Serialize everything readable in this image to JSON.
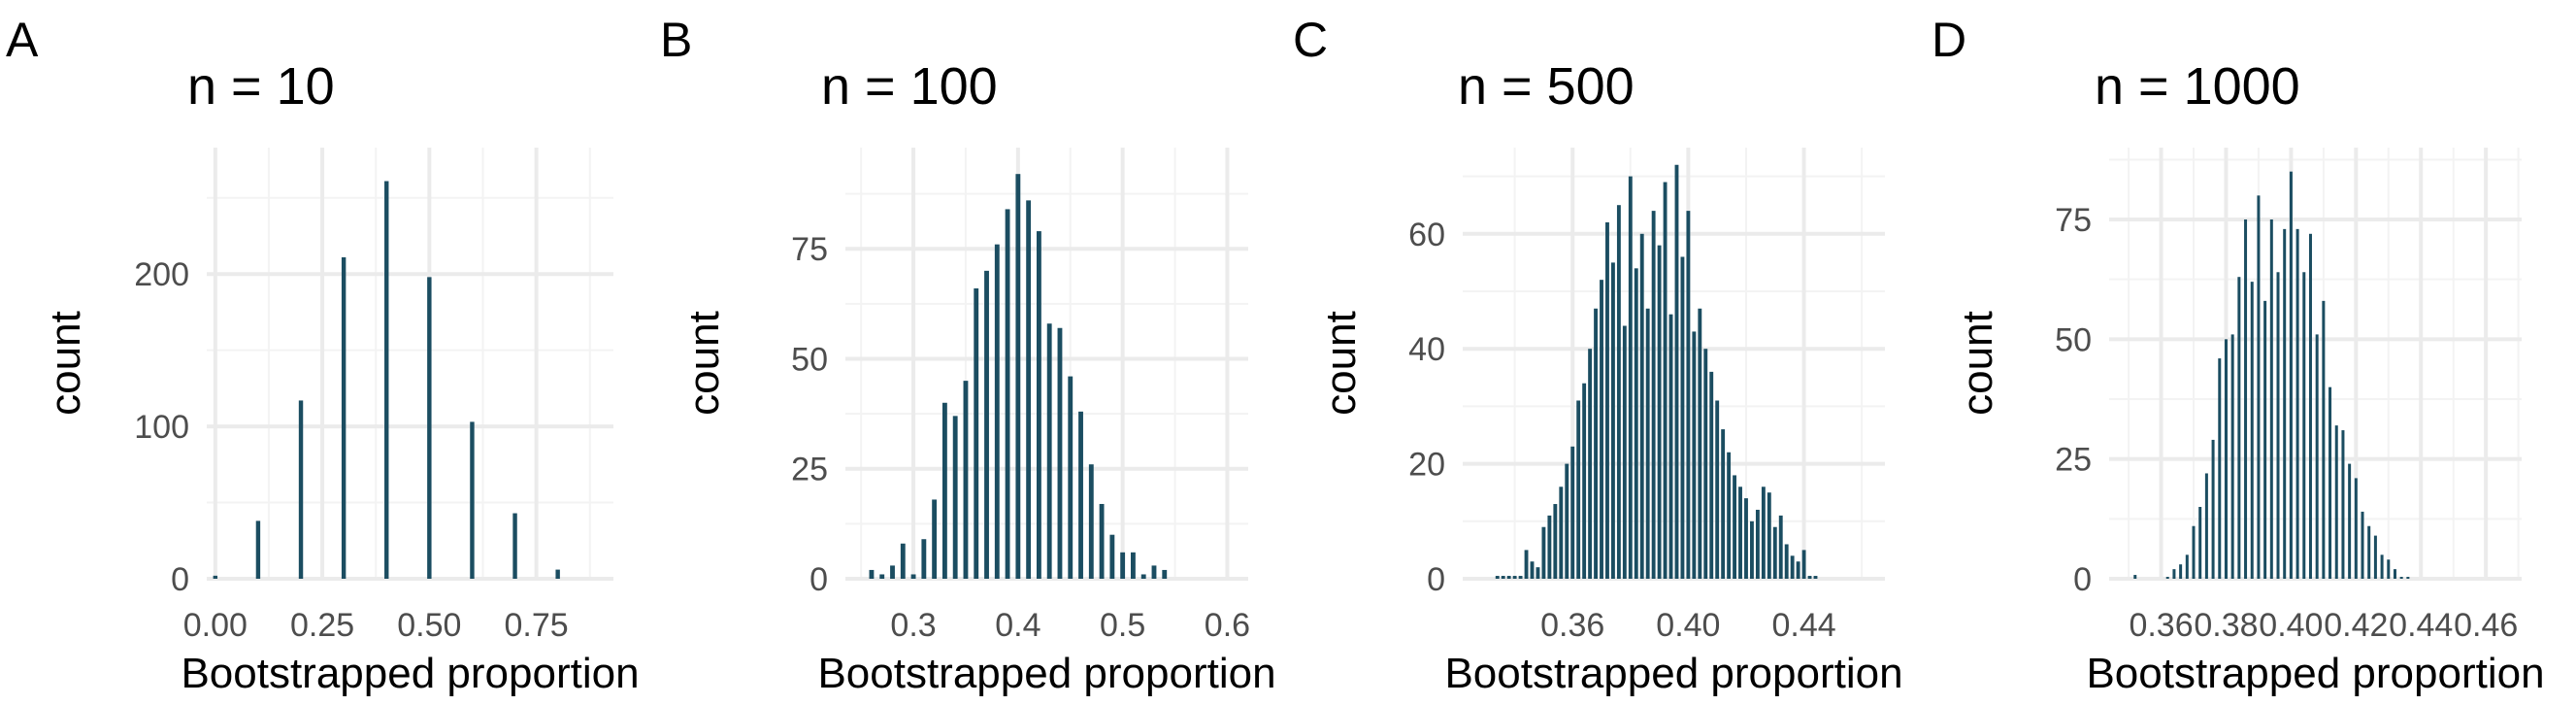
{
  "colors": {
    "bar": "#1b4d61",
    "grid": "#ebebeb",
    "background": "#ffffff"
  },
  "chart_data": [
    {
      "type": "bar",
      "panel": "A",
      "title": "n = 10",
      "xlabel": "Bootstrapped proportion",
      "ylabel": "count",
      "xlim": [
        -0.02,
        0.93
      ],
      "ylim": [
        0,
        283
      ],
      "xticks": [
        0,
        0.25,
        0.5,
        0.75
      ],
      "xtick_labels": [
        "0.00",
        "0.25",
        "0.50",
        "0.75"
      ],
      "yticks": [
        0,
        100,
        200
      ],
      "ytick_labels": [
        "0",
        "100",
        "200"
      ],
      "bar_width": 0.01,
      "x": [
        0.0,
        0.1,
        0.2,
        0.3,
        0.4,
        0.5,
        0.6,
        0.7,
        0.8
      ],
      "values": [
        2,
        38,
        117,
        211,
        261,
        198,
        103,
        43,
        6
      ]
    },
    {
      "type": "bar",
      "panel": "B",
      "title": "n = 100",
      "xlabel": "Bootstrapped proportion",
      "ylabel": "count",
      "xlim": [
        0.235,
        0.62
      ],
      "ylim": [
        0,
        98
      ],
      "xticks": [
        0.3,
        0.4,
        0.5,
        0.6
      ],
      "xtick_labels": [
        "0.3",
        "0.4",
        "0.5",
        "0.6"
      ],
      "yticks": [
        0,
        25,
        50,
        75
      ],
      "ytick_labels": [
        "0",
        "25",
        "50",
        "75"
      ],
      "bar_width": 0.0045,
      "x": [
        0.26,
        0.27,
        0.28,
        0.29,
        0.3,
        0.31,
        0.32,
        0.33,
        0.34,
        0.35,
        0.36,
        0.37,
        0.38,
        0.39,
        0.4,
        0.41,
        0.42,
        0.43,
        0.44,
        0.45,
        0.46,
        0.47,
        0.48,
        0.49,
        0.5,
        0.51,
        0.52,
        0.53,
        0.54
      ],
      "values": [
        2,
        1,
        3,
        8,
        1,
        9,
        18,
        40,
        37,
        45,
        66,
        70,
        76,
        84,
        92,
        86,
        79,
        58,
        57,
        46,
        38,
        26,
        17,
        10,
        6,
        6,
        1,
        3,
        2
      ]
    },
    {
      "type": "bar",
      "panel": "C",
      "title": "n = 500",
      "xlabel": "Bootstrapped proportion",
      "ylabel": "count",
      "xlim": [
        0.322,
        0.468
      ],
      "ylim": [
        0,
        75
      ],
      "xticks": [
        0.36,
        0.4,
        0.44
      ],
      "xtick_labels": [
        "0.36",
        "0.40",
        "0.44"
      ],
      "yticks": [
        0,
        20,
        40,
        60
      ],
      "ytick_labels": [
        "0",
        "20",
        "40",
        "60"
      ],
      "bar_width": 0.0013,
      "x": [
        0.334,
        0.336,
        0.338,
        0.34,
        0.342,
        0.344,
        0.346,
        0.348,
        0.35,
        0.352,
        0.354,
        0.356,
        0.358,
        0.36,
        0.362,
        0.364,
        0.366,
        0.368,
        0.37,
        0.372,
        0.374,
        0.376,
        0.378,
        0.38,
        0.382,
        0.384,
        0.386,
        0.388,
        0.39,
        0.392,
        0.394,
        0.396,
        0.398,
        0.4,
        0.402,
        0.404,
        0.406,
        0.408,
        0.41,
        0.412,
        0.414,
        0.416,
        0.418,
        0.42,
        0.422,
        0.424,
        0.426,
        0.428,
        0.43,
        0.432,
        0.434,
        0.436,
        0.438,
        0.44,
        0.442,
        0.444,
        0.446,
        0.448,
        0.45,
        0.452,
        0.454,
        0.456
      ],
      "values": [
        0.5,
        0.5,
        0.5,
        0.5,
        0.5,
        5,
        3,
        2,
        9,
        11,
        13,
        16,
        20,
        23,
        31,
        34,
        40,
        47,
        52,
        62,
        55,
        65,
        44,
        70,
        54,
        60,
        47,
        64,
        58,
        69,
        46,
        72,
        56,
        64,
        43,
        47,
        40,
        36,
        31,
        26,
        22,
        18,
        16,
        14,
        10,
        12,
        16,
        15,
        9,
        11,
        6,
        4,
        3,
        5,
        0.5,
        0.5,
        0,
        0,
        0,
        0,
        0,
        0
      ]
    },
    {
      "type": "bar",
      "panel": "D",
      "title": "n = 1000",
      "xlabel": "Bootstrapped proportion",
      "ylabel": "count",
      "xlim": [
        0.344,
        0.471
      ],
      "ylim": [
        0,
        90
      ],
      "xticks": [
        0.36,
        0.38,
        0.4,
        0.42,
        0.44,
        0.46
      ],
      "xtick_labels": [
        "0.36",
        "0.38",
        "0.40",
        "0.42",
        "0.44",
        "0.46"
      ],
      "yticks": [
        0,
        25,
        50,
        75
      ],
      "ytick_labels": [
        "0",
        "25",
        "50",
        "75"
      ],
      "bar_width": 0.0006,
      "x": [
        0.35,
        0.351,
        0.352,
        0.353,
        0.354,
        0.355,
        0.356,
        0.357,
        0.358,
        0.359,
        0.36,
        0.361,
        0.362,
        0.363,
        0.364,
        0.365,
        0.366,
        0.367,
        0.368,
        0.369,
        0.37,
        0.371,
        0.372,
        0.373,
        0.374,
        0.375,
        0.376,
        0.377,
        0.378,
        0.379,
        0.38,
        0.381,
        0.382,
        0.383,
        0.384,
        0.385,
        0.386,
        0.387,
        0.388,
        0.389,
        0.39,
        0.391,
        0.392,
        0.393,
        0.394,
        0.395,
        0.396,
        0.397,
        0.398,
        0.399,
        0.4,
        0.401,
        0.402,
        0.403,
        0.404,
        0.405,
        0.406,
        0.407,
        0.408,
        0.409,
        0.41,
        0.411,
        0.412,
        0.413,
        0.414,
        0.415,
        0.416,
        0.417,
        0.418,
        0.419,
        0.42,
        0.421,
        0.422,
        0.423,
        0.424,
        0.425,
        0.426,
        0.427,
        0.428,
        0.429,
        0.43,
        0.431,
        0.432,
        0.433,
        0.434,
        0.435,
        0.436,
        0.437,
        0.438,
        0.439,
        0.44,
        0.441,
        0.442,
        0.443,
        0.444,
        0.445,
        0.446,
        0.447,
        0.448,
        0.449,
        0.45
      ],
      "values": [
        0,
        0,
        0.8,
        0,
        0,
        0,
        0,
        0,
        0,
        0,
        0,
        0,
        0.4,
        0,
        2,
        0,
        3,
        0,
        5,
        0,
        11,
        0,
        15,
        0,
        22,
        0,
        29,
        0,
        46,
        0,
        50,
        0,
        51,
        0,
        63,
        0,
        75,
        0,
        62,
        0,
        80,
        0,
        58,
        0,
        75,
        0,
        64,
        0,
        73,
        0,
        85,
        0,
        73,
        0,
        64,
        0,
        72,
        0,
        51,
        0,
        58,
        0,
        40,
        0,
        32,
        0,
        31,
        0,
        24,
        0,
        21,
        0,
        14,
        0,
        11,
        0,
        9,
        0,
        5,
        0,
        4,
        0,
        2,
        0,
        0.4,
        0,
        0.4,
        0,
        0,
        0,
        0,
        0,
        0,
        0,
        0,
        0,
        0,
        0,
        0,
        0,
        0
      ]
    }
  ]
}
